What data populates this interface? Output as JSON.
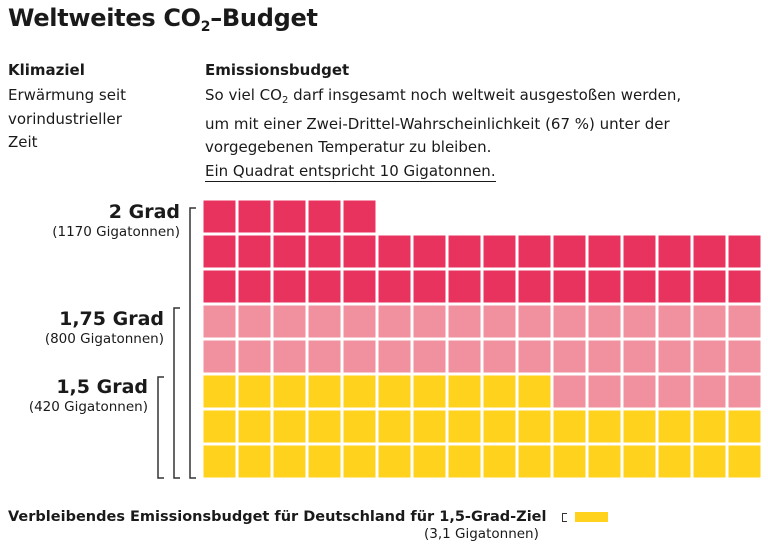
{
  "title": {
    "main": "Weltweites CO",
    "sub": "2",
    "rest": "–Budget"
  },
  "columns": {
    "goal_header": "Klimaziel",
    "budget_header": "Emissionsbudget"
  },
  "goal_desc": [
    "Erwärmung seit",
    "vorindustrieller",
    "Zeit"
  ],
  "budget_desc": {
    "line1_a": "So viel CO",
    "line1_sub": "2",
    "line1_b": " darf insgesamt noch weltweit ausgestoßen werden,",
    "line2": "um mit einer Zwei-Drittel-Wahrscheinlichkeit (67 %) unter der",
    "line3": "vorgegebenen Temperatur zu bleiben.",
    "note": "Ein Quadrat entspricht 10 Gigatonnen."
  },
  "levels": [
    {
      "grad": "2 Grad",
      "budget": "(1170 Gigatonnen)"
    },
    {
      "grad": "1,75 Grad",
      "budget": "(800 Gigatonnen)"
    },
    {
      "grad": "1,5 Grad",
      "budget": "(420 Gigatonnen)"
    }
  ],
  "footer": {
    "label": "Verbleibendes Emissionsbudget für Deutschland für 1,5-Grad-Ziel",
    "value": "(3,1 Gigatonnen)"
  },
  "colors": {
    "two_degree": "#E8335F",
    "one_seventyfive_degree": "#F1919F",
    "one_five_degree": "#FFD21E"
  },
  "chart_data": {
    "type": "waffle",
    "unit_per_square_gigatonnes": 10,
    "columns_per_row": 16,
    "series": [
      {
        "name": "2 Grad",
        "value": 1170,
        "squares": 117
      },
      {
        "name": "1,75 Grad",
        "value": 800,
        "squares": 80
      },
      {
        "name": "1,5 Grad",
        "value": 420,
        "squares": 42
      }
    ],
    "germany_1_5_budget": 3.1
  }
}
